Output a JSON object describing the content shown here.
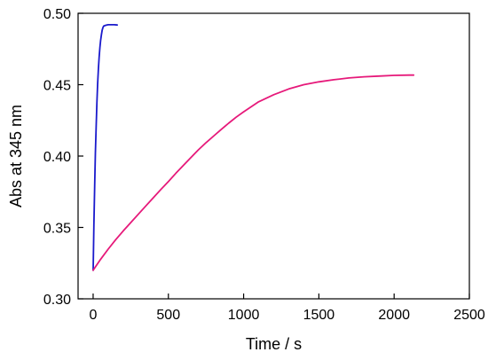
{
  "chart_data": {
    "type": "line",
    "xlabel": "Time / s",
    "ylabel": "Abs at 345 nm",
    "xlim": [
      -100,
      2500
    ],
    "ylim": [
      0.3,
      0.5
    ],
    "x_ticks": [
      0,
      500,
      1000,
      1500,
      2000,
      2500
    ],
    "y_ticks": [
      0.3,
      0.35,
      0.4,
      0.45,
      0.5
    ],
    "x_tick_labels": [
      "0",
      "500",
      "1000",
      "1500",
      "2000",
      "2500"
    ],
    "y_tick_labels": [
      "0.30",
      "0.35",
      "0.40",
      "0.45",
      "0.50"
    ],
    "grid": false,
    "series": [
      {
        "color": "#1a1acc",
        "x": [
          0,
          5,
          10,
          15,
          20,
          25,
          30,
          35,
          40,
          45,
          50,
          55,
          60,
          65,
          70,
          80,
          90,
          100,
          120,
          140,
          160
        ],
        "y": [
          0.32,
          0.351,
          0.379,
          0.402,
          0.421,
          0.437,
          0.45,
          0.461,
          0.469,
          0.476,
          0.481,
          0.485,
          0.488,
          0.49,
          0.491,
          0.4915,
          0.4918,
          0.492,
          0.492,
          0.492,
          0.4918
        ]
      },
      {
        "color": "#e6197a",
        "x": [
          0,
          50,
          100,
          150,
          200,
          250,
          300,
          350,
          400,
          450,
          500,
          550,
          600,
          650,
          700,
          750,
          800,
          850,
          900,
          950,
          1000,
          1100,
          1200,
          1300,
          1400,
          1500,
          1600,
          1700,
          1800,
          1900,
          2000,
          2100,
          2130
        ],
        "y": [
          0.32,
          0.3277,
          0.3348,
          0.3414,
          0.3476,
          0.3534,
          0.3592,
          0.365,
          0.3708,
          0.3766,
          0.3822,
          0.388,
          0.3935,
          0.399,
          0.4044,
          0.4094,
          0.414,
          0.4185,
          0.423,
          0.4272,
          0.431,
          0.438,
          0.443,
          0.447,
          0.45,
          0.452,
          0.4535,
          0.4547,
          0.4555,
          0.456,
          0.4565,
          0.4567,
          0.4567
        ]
      }
    ]
  }
}
